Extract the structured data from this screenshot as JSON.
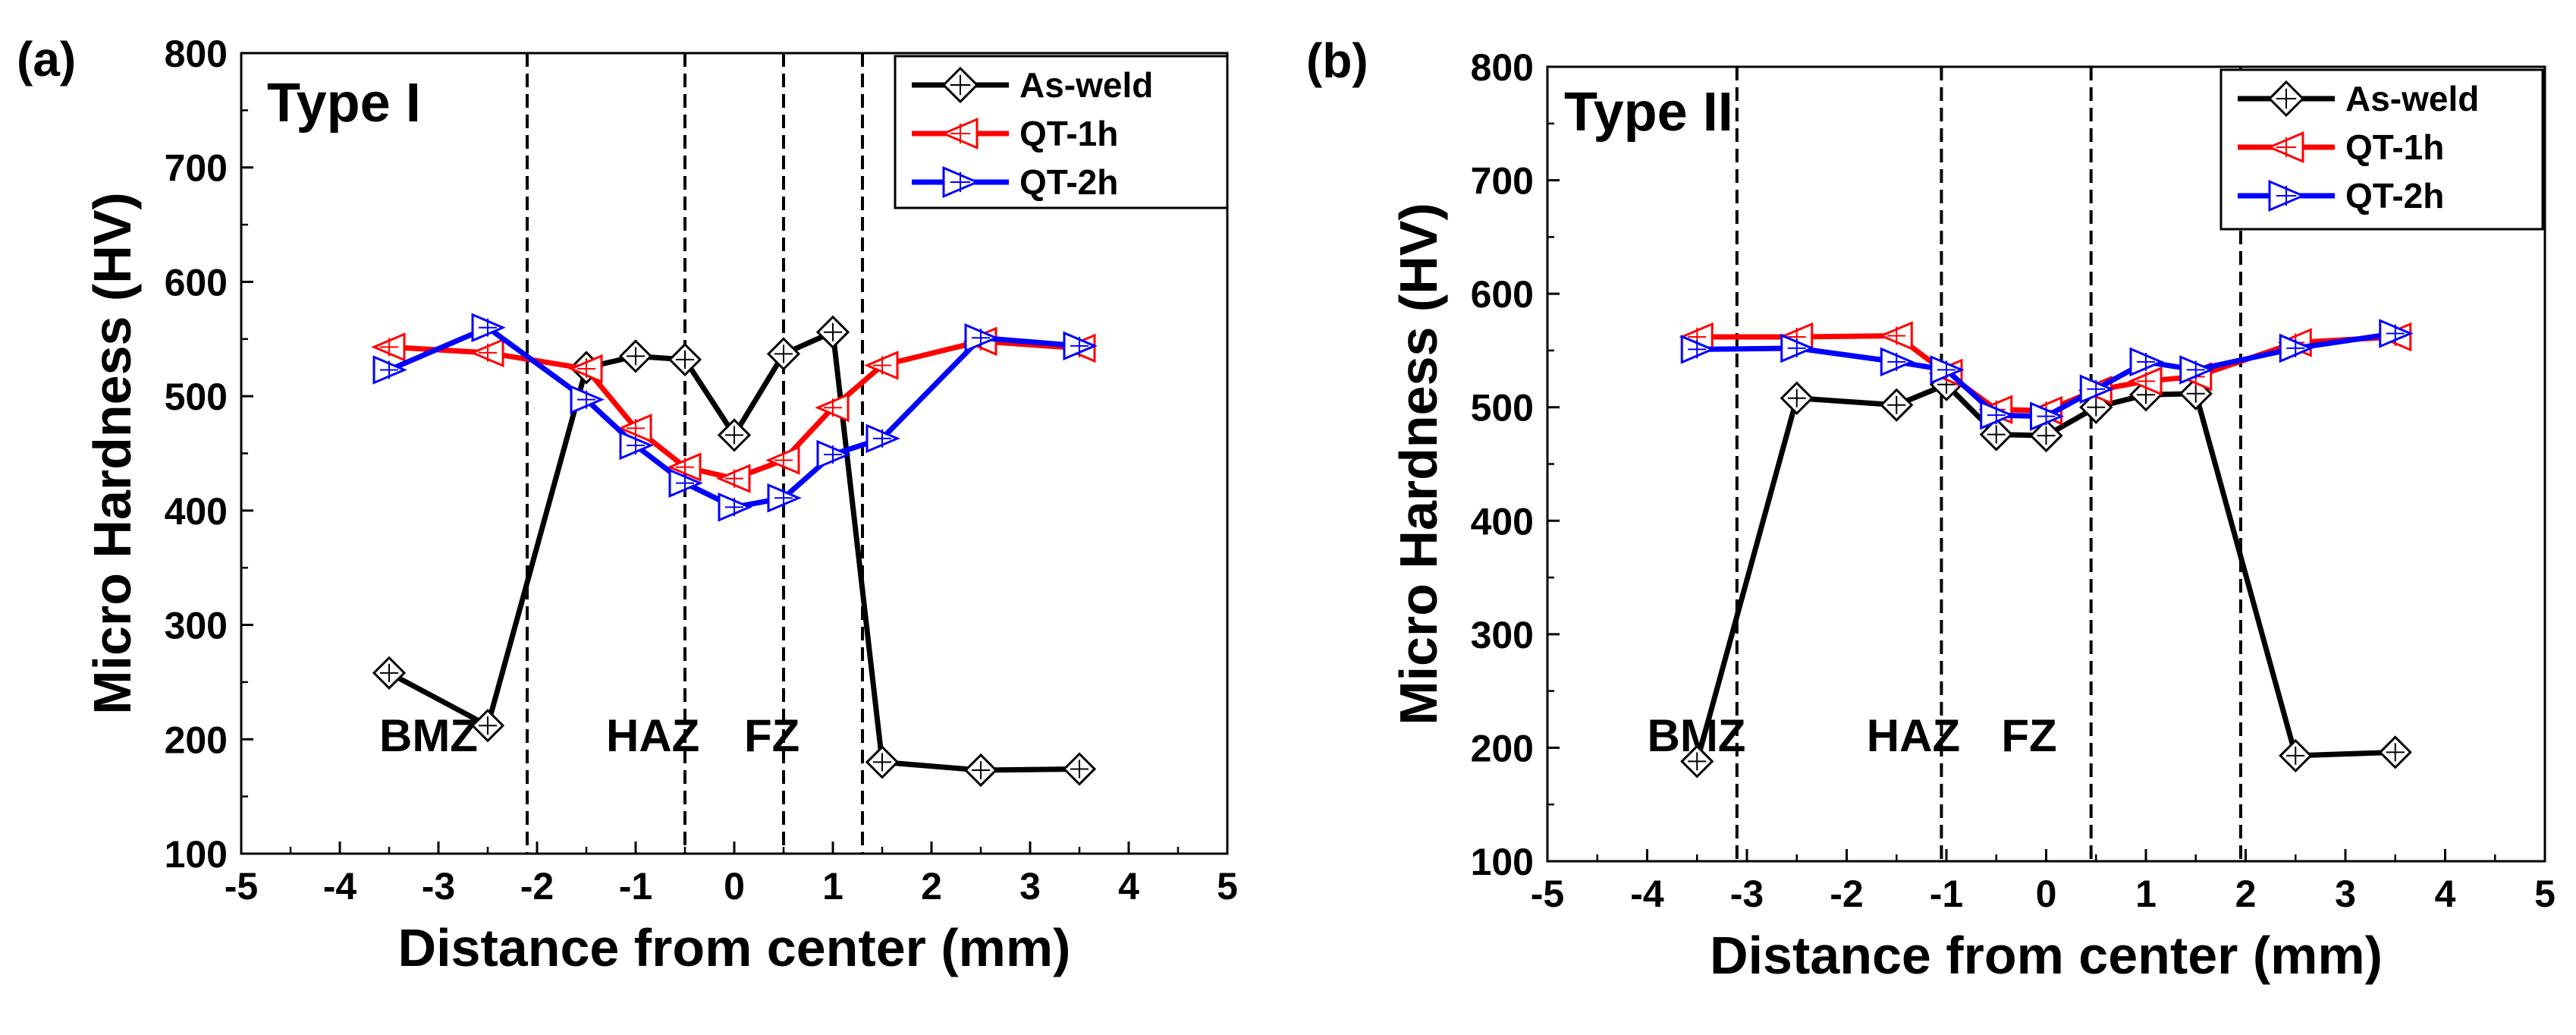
{
  "chart_data": [
    {
      "type": "line",
      "panel_label": "(a)",
      "title": "Type I",
      "xlabel": "Distance from center (mm)",
      "ylabel": "Micro Hardness (HV)",
      "xlim": [
        -5,
        5
      ],
      "ylim": [
        100,
        800
      ],
      "xticks": [
        "-5",
        "-4",
        "-3",
        "-2",
        "-1",
        "0",
        "1",
        "2",
        "3",
        "4",
        "5"
      ],
      "yticks": [
        "100",
        "200",
        "300",
        "400",
        "500",
        "600",
        "700",
        "800"
      ],
      "zone_boundaries": [
        -2.1,
        -0.5,
        0.5,
        1.3
      ],
      "zone_labels": [
        {
          "text": "BMZ",
          "x": -3.6,
          "y": 195
        },
        {
          "text": "HAZ",
          "x": -1.3,
          "y": 195
        },
        {
          "text": "FZ",
          "x": 0.1,
          "y": 195
        }
      ],
      "legend_position": "top-right",
      "series": [
        {
          "name": "As-weld",
          "color": "#000000",
          "marker": "diamond",
          "x": [
            -3.5,
            -2.5,
            -1.5,
            -1,
            -0.5,
            0,
            0.5,
            1,
            1.5,
            2.5,
            3.5
          ],
          "y": [
            258,
            212,
            525,
            535,
            532,
            466,
            537,
            556,
            180,
            173,
            174
          ]
        },
        {
          "name": "QT-1h",
          "color": "#ff0000",
          "marker": "triangle-left",
          "x": [
            -3.5,
            -2.5,
            -1.5,
            -1,
            -0.5,
            0,
            0.5,
            1,
            1.5,
            2.5,
            3.5
          ],
          "y": [
            543,
            538,
            524,
            472,
            438,
            428,
            444,
            490,
            527,
            548,
            542
          ]
        },
        {
          "name": "QT-2h",
          "color": "#0000ff",
          "marker": "triangle-right",
          "x": [
            -3.5,
            -2.5,
            -1.5,
            -1,
            -0.5,
            0,
            0.5,
            1,
            1.5,
            2.5,
            3.5
          ],
          "y": [
            523,
            560,
            497,
            457,
            424,
            403,
            411,
            449,
            463,
            551,
            544
          ]
        }
      ]
    },
    {
      "type": "line",
      "panel_label": "(b)",
      "title": "Type II",
      "xlabel": "Distance from center (mm)",
      "ylabel": "Micro Hardness (HV)",
      "xlim": [
        -5,
        5
      ],
      "ylim": [
        100,
        800
      ],
      "xticks": [
        "-5",
        "-4",
        "-3",
        "-2",
        "-1",
        "0",
        "1",
        "2",
        "3",
        "4",
        "5"
      ],
      "yticks": [
        "100",
        "200",
        "300",
        "400",
        "500",
        "600",
        "700",
        "800"
      ],
      "zone_boundaries": [
        -3.1,
        -1.05,
        0.45,
        1.95
      ],
      "zone_labels": [
        {
          "text": "BMZ",
          "x": -4.0,
          "y": 195
        },
        {
          "text": "HAZ",
          "x": -1.8,
          "y": 195
        },
        {
          "text": "FZ",
          "x": -0.45,
          "y": 195
        }
      ],
      "legend_position": "top-right",
      "series": [
        {
          "name": "As-weld",
          "color": "#000000",
          "marker": "diamond",
          "x": [
            -3.5,
            -2.5,
            -1.5,
            -1,
            -0.5,
            0,
            0.5,
            1,
            1.5,
            2.5,
            3.5
          ],
          "y": [
            188,
            508,
            502,
            520,
            476,
            475,
            500,
            511,
            512,
            193,
            196
          ]
        },
        {
          "name": "QT-1h",
          "color": "#ff0000",
          "marker": "triangle-left",
          "x": [
            -3.5,
            -2.5,
            -1.5,
            -1,
            -0.5,
            0,
            0.5,
            1,
            1.5,
            2.5,
            3.5
          ],
          "y": [
            562,
            562,
            563,
            530,
            498,
            497,
            515,
            523,
            527,
            557,
            562
          ]
        },
        {
          "name": "QT-2h",
          "color": "#0000ff",
          "marker": "triangle-right",
          "x": [
            -3.5,
            -2.5,
            -1.5,
            -1,
            -0.5,
            0,
            0.5,
            1,
            1.5,
            2.5,
            3.5
          ],
          "y": [
            551,
            552,
            540,
            533,
            493,
            492,
            516,
            540,
            533,
            552,
            565
          ]
        }
      ]
    }
  ]
}
